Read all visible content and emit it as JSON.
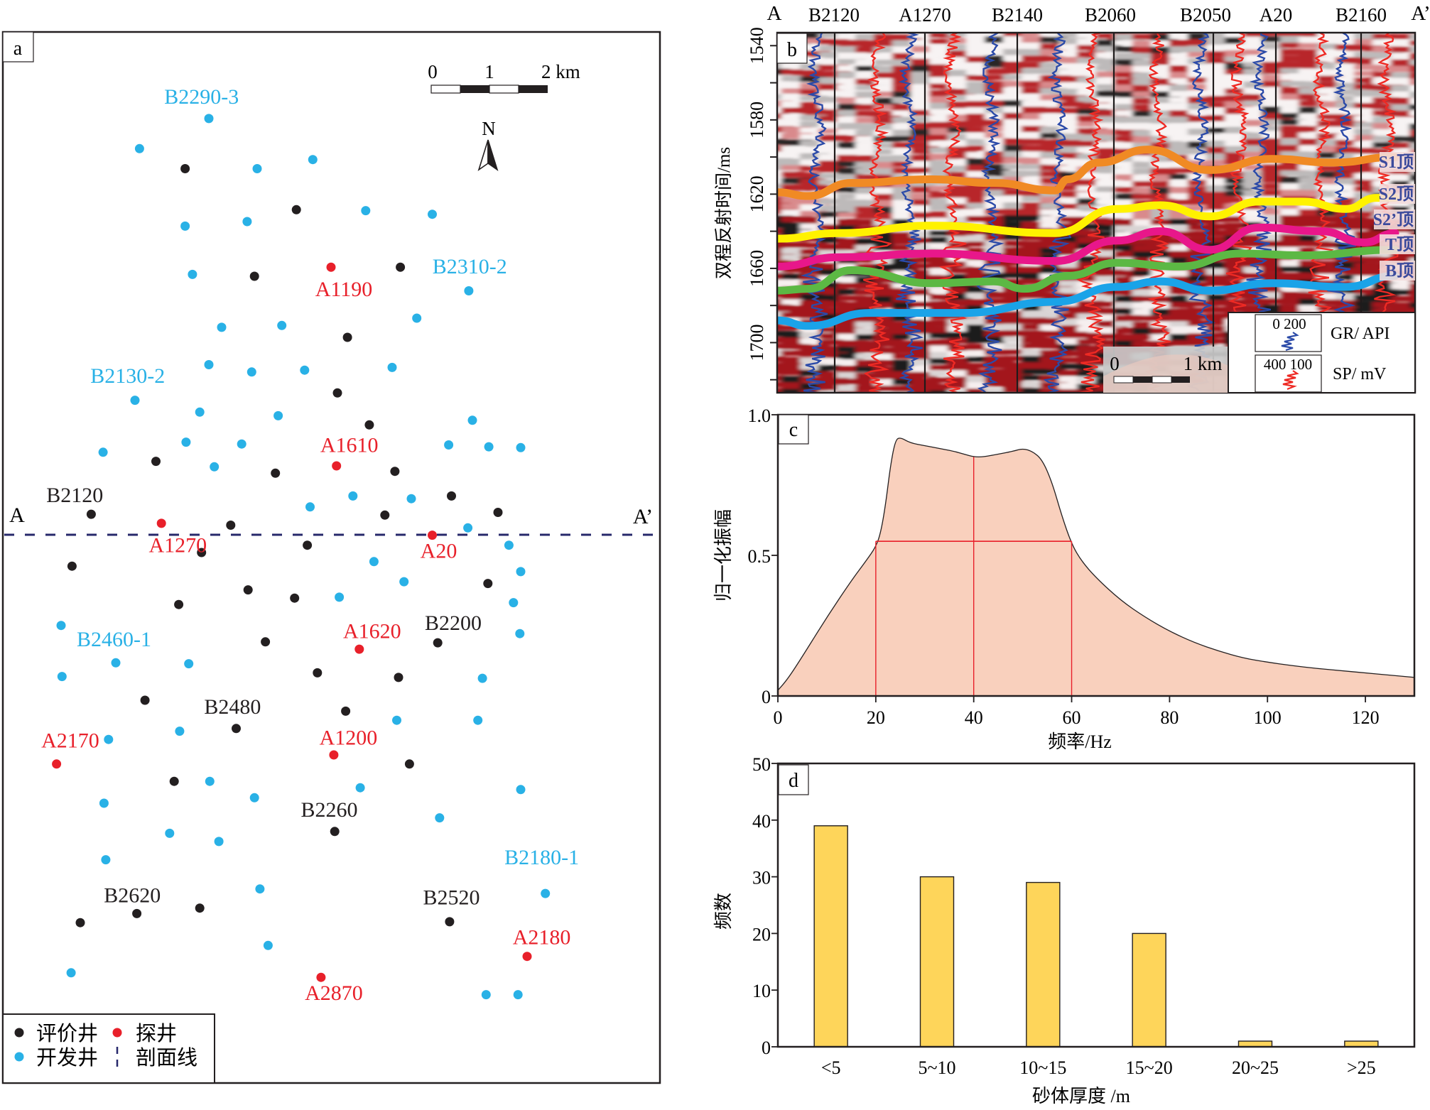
{
  "panel_a": {
    "label": "a",
    "scale_bar": {
      "ticks": [
        "0",
        "1",
        "2 km"
      ]
    },
    "north_label": "N",
    "section_line": {
      "start": "A",
      "end": "A’"
    },
    "colors": {
      "evaluation": "#231f20",
      "exploration": "#e8202a",
      "development": "#29b1e6",
      "section": "#27286b"
    },
    "legend": [
      {
        "type": "evaluation",
        "label": "评价井"
      },
      {
        "type": "exploration",
        "label": "探井"
      },
      {
        "type": "development",
        "label": "开发井"
      },
      {
        "type": "section",
        "label": "剖面线"
      }
    ],
    "labels": [
      {
        "text": "B2290-3",
        "type": "development"
      },
      {
        "text": "B2310-2",
        "type": "development"
      },
      {
        "text": "A1190",
        "type": "exploration"
      },
      {
        "text": "B2130-2",
        "type": "development"
      },
      {
        "text": "A1610",
        "type": "exploration"
      },
      {
        "text": "B2120",
        "type": "evaluation"
      },
      {
        "text": "A1270",
        "type": "exploration"
      },
      {
        "text": "A20",
        "type": "exploration"
      },
      {
        "text": "A1620",
        "type": "exploration"
      },
      {
        "text": "B2200",
        "type": "evaluation"
      },
      {
        "text": "B2460-1",
        "type": "development"
      },
      {
        "text": "B2480",
        "type": "evaluation"
      },
      {
        "text": "A2170",
        "type": "exploration"
      },
      {
        "text": "A1200",
        "type": "exploration"
      },
      {
        "text": "B2260",
        "type": "evaluation"
      },
      {
        "text": "B2180-1",
        "type": "development"
      },
      {
        "text": "B2620",
        "type": "evaluation"
      },
      {
        "text": "B2520",
        "type": "evaluation"
      },
      {
        "text": "A2180",
        "type": "exploration"
      },
      {
        "text": "A2870",
        "type": "exploration"
      }
    ],
    "well_counts": {
      "development": 63,
      "evaluation": 36,
      "exploration": 9
    }
  },
  "panel_b": {
    "label": "b",
    "section_start": "A",
    "section_end": "A’",
    "wells": [
      "B2120",
      "A1270",
      "B2140",
      "B2060",
      "B2050",
      "A20",
      "B2160"
    ],
    "y_axis": {
      "label": "双程反射时间/ms",
      "ticks": [
        1540,
        1580,
        1620,
        1660,
        1700
      ],
      "range": [
        1533,
        1727
      ]
    },
    "horizons": [
      {
        "name": "S1顶",
        "color": "#f08a24"
      },
      {
        "name": "S2顶",
        "color": "#fff200"
      },
      {
        "name": "S2’顶",
        "color": "#e8178a"
      },
      {
        "name": "T顶",
        "color": "#5cb844"
      },
      {
        "name": "B顶",
        "color": "#1aa3e8"
      }
    ],
    "scale_bar": {
      "start": "0",
      "end": "1 km"
    },
    "log_legend": [
      {
        "range": "0  200",
        "label": "GR/ API",
        "color": "#2b4aa8"
      },
      {
        "range": "400 100",
        "label": "SP/ mV",
        "color": "#ee2a24"
      }
    ]
  },
  "chart_data": [
    {
      "type": "area",
      "panel": "c",
      "title": "",
      "xlabel": "频率/Hz",
      "ylabel": "归一化振幅",
      "xlim": [
        0,
        130
      ],
      "ylim": [
        0,
        1.0
      ],
      "xticks": [
        0,
        20,
        40,
        60,
        80,
        100,
        120
      ],
      "yticks": [
        {
          "v": 0,
          "t": "0"
        },
        {
          "v": 0.5,
          "t": "0.5"
        },
        {
          "v": 1.0,
          "t": "1.0"
        }
      ],
      "x": [
        0,
        2,
        5,
        10,
        15,
        18,
        20,
        21,
        22,
        23,
        24,
        25,
        27,
        30,
        33,
        36,
        38,
        40,
        42,
        45,
        48,
        50,
        52,
        54,
        56,
        58,
        60,
        62,
        65,
        70,
        75,
        80,
        85,
        90,
        95,
        100,
        105,
        110,
        115,
        120,
        125,
        130
      ],
      "y": [
        0.02,
        0.06,
        0.14,
        0.28,
        0.41,
        0.48,
        0.53,
        0.58,
        0.68,
        0.82,
        0.91,
        0.92,
        0.9,
        0.89,
        0.88,
        0.87,
        0.86,
        0.85,
        0.85,
        0.86,
        0.87,
        0.88,
        0.87,
        0.84,
        0.76,
        0.64,
        0.54,
        0.48,
        0.42,
        0.34,
        0.28,
        0.23,
        0.19,
        0.16,
        0.135,
        0.12,
        0.108,
        0.098,
        0.09,
        0.082,
        0.074,
        0.066
      ],
      "fill_color": "#f9d0bd",
      "annotations": {
        "band_low": 20,
        "band_high": 60,
        "center": 40,
        "level": 0.55,
        "color": "#e8202a"
      }
    },
    {
      "type": "bar",
      "panel": "d",
      "title": "",
      "xlabel": "砂体厚度 /m",
      "ylabel": "频数",
      "categories": [
        "<5",
        "5~10",
        "10~15",
        "15~20",
        "20~25",
        ">25"
      ],
      "values": [
        39,
        30,
        29,
        20,
        1,
        1
      ],
      "ylim": [
        0,
        50
      ],
      "yticks": [
        0,
        10,
        20,
        30,
        40,
        50
      ],
      "bar_color": "#fed55a"
    }
  ]
}
